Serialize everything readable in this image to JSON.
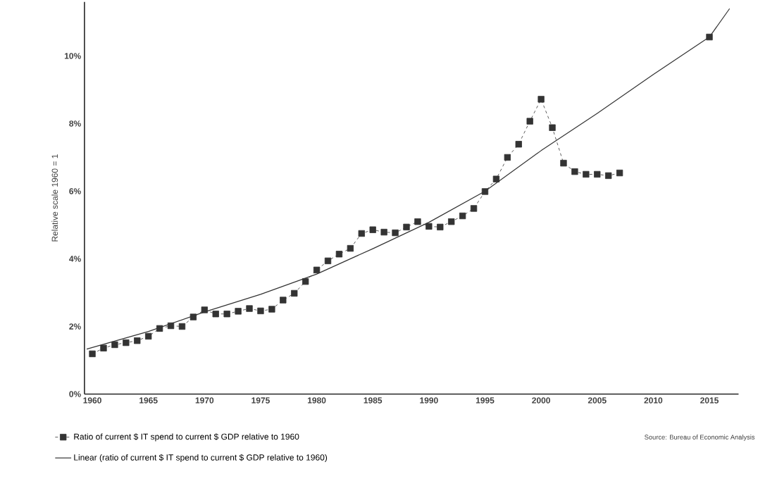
{
  "chart_data": {
    "type": "line",
    "ylabel": "Relative scale 1960 = 1",
    "xlim": [
      1959.3,
      2017.6
    ],
    "ylim": [
      0,
      11.6
    ],
    "xticks": [
      1960,
      1965,
      1970,
      1975,
      1980,
      1985,
      1990,
      1995,
      2000,
      2005,
      2010,
      2015
    ],
    "yticks": [
      {
        "value": 0,
        "label": "0%"
      },
      {
        "value": 2,
        "label": "2%"
      },
      {
        "value": 4,
        "label": "4%"
      },
      {
        "value": 6,
        "label": "6%"
      },
      {
        "value": 8,
        "label": "8%"
      },
      {
        "value": 10,
        "label": "10%"
      }
    ],
    "grid": false,
    "legend": "bottom",
    "marker": "square",
    "annotations": [
      "Source: Bureau of Economic Analysis"
    ],
    "series": [
      {
        "name": "Ratio of current $ IT spend to current $ GDP relative to 1960",
        "color": "#333333",
        "line_style": "dashed",
        "x": [
          1960,
          1961,
          1962,
          1963,
          1964,
          1965,
          1966,
          1967,
          1968,
          1969,
          1970,
          1971,
          1972,
          1973,
          1974,
          1975,
          1976,
          1977,
          1978,
          1979,
          1980,
          1981,
          1982,
          1983,
          1984,
          1985,
          1986,
          1987,
          1988,
          1989,
          1990,
          1991,
          1992,
          1993,
          1994,
          1995,
          1996,
          1997,
          1998,
          1999,
          2000,
          2001,
          2002,
          2003,
          2004,
          2005,
          2006,
          2007,
          2011,
          2015
        ],
        "values": [
          1.19,
          1.36,
          1.46,
          1.52,
          1.58,
          1.71,
          1.94,
          2.02,
          2.0,
          2.28,
          2.49,
          2.37,
          2.37,
          2.45,
          2.53,
          2.46,
          2.51,
          2.78,
          2.98,
          3.33,
          3.67,
          3.94,
          4.14,
          4.31,
          4.75,
          4.86,
          4.79,
          4.77,
          4.94,
          5.1,
          4.96,
          4.94,
          5.1,
          5.27,
          5.49,
          5.99,
          6.36,
          7.0,
          7.39,
          8.07,
          8.72,
          7.88,
          6.83,
          6.58,
          6.5,
          6.5,
          6.46,
          6.54,
          null,
          10.56
        ]
      },
      {
        "name": "Linear (ratio of current $ IT spend to current $ GDP relative to 1960)",
        "color": "#333333",
        "line_style": "solid",
        "marker": "none",
        "x": [
          1959.5,
          1965,
          1970,
          1975,
          1980,
          1985,
          1990,
          1995,
          2000,
          2005,
          2010,
          2015,
          2016.8
        ],
        "values": [
          1.33,
          1.85,
          2.43,
          2.95,
          3.55,
          4.3,
          5.08,
          6.0,
          7.2,
          8.3,
          9.45,
          10.56,
          11.4
        ]
      }
    ]
  }
}
